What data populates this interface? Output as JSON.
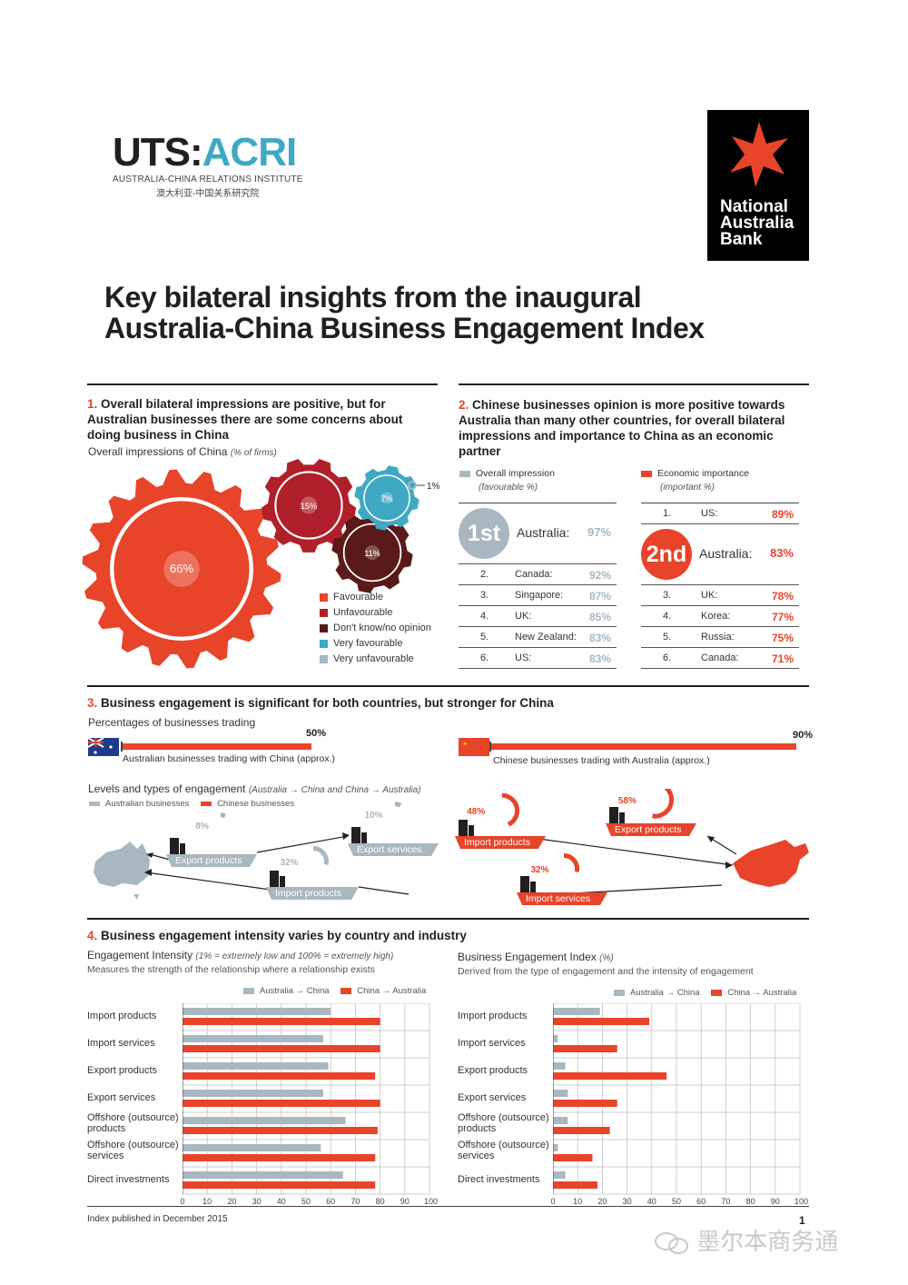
{
  "header": {
    "logo_left_main_a": "UTS:",
    "logo_left_main_b": "ACRI",
    "logo_left_sub": "AUSTRALIA-CHINA RELATIONS INSTITUTE",
    "logo_left_cn": "澳大利亚-中国关系研究院",
    "logo_right_line1": "National",
    "logo_right_line2": "Australia",
    "logo_right_line3": "Bank",
    "title_line1": "Key bilateral insights from the inaugural",
    "title_line2": "Australia-China Business Engagement Index"
  },
  "section1": {
    "num": "1.",
    "heading": "Overall bilateral impressions are positive, but for Australian businesses there are some concerns about doing business in China",
    "subtitle": "Overall impressions of China",
    "subtitle_note": "(% of firms)",
    "chart_data": {
      "type": "pie",
      "title": "Overall impressions of China",
      "labels": [
        "Favourable",
        "Unfavourable",
        "Don't know/no opinion",
        "Very favourable",
        "Very unfavourable"
      ],
      "values": [
        66,
        15,
        11,
        7,
        1
      ],
      "colors": [
        "#e8442a",
        "#b0202a",
        "#5a1a1a",
        "#3fa9c4",
        "#a9b7c0"
      ],
      "value_labels": [
        "66%",
        "15%",
        "11%",
        "7%",
        "1%"
      ]
    }
  },
  "section2": {
    "num": "2.",
    "heading": "Chinese businesses opinion is more positive towards Australia than many other countries, for overall bilateral impressions and importance to China as an economic partner",
    "left_legend_line1": "Overall impression",
    "left_legend_line2": "(favourable %)",
    "right_legend_line1": "Economic importance",
    "right_legend_line2": "(important %)",
    "left_big_rank": "1st",
    "right_big_rank": "2nd",
    "chart_data": [
      {
        "type": "table",
        "title": "Overall impression (favourable %)",
        "rows": [
          {
            "rank": "1st",
            "country": "Australia:",
            "value": "97%"
          },
          {
            "rank": "2.",
            "country": "Canada:",
            "value": "92%"
          },
          {
            "rank": "3.",
            "country": "Singapore:",
            "value": "87%"
          },
          {
            "rank": "4.",
            "country": "UK:",
            "value": "85%"
          },
          {
            "rank": "5.",
            "country": "New Zealand:",
            "value": "83%"
          },
          {
            "rank": "6.",
            "country": "US:",
            "value": "83%"
          }
        ]
      },
      {
        "type": "table",
        "title": "Economic importance (important %)",
        "rows": [
          {
            "rank": "1.",
            "country": "US:",
            "value": "89%"
          },
          {
            "rank": "2nd",
            "country": "Australia:",
            "value": "83%"
          },
          {
            "rank": "3.",
            "country": "UK:",
            "value": "78%"
          },
          {
            "rank": "4.",
            "country": "Korea:",
            "value": "77%"
          },
          {
            "rank": "5.",
            "country": "Russia:",
            "value": "75%"
          },
          {
            "rank": "6.",
            "country": "Canada:",
            "value": "71%"
          }
        ]
      }
    ]
  },
  "section3": {
    "num": "3.",
    "heading": "Business engagement is significant for both countries, but stronger for China",
    "trading_title": "Percentages of businesses trading",
    "aus_bar_label": "Australian businesses trading with China (approx.)",
    "aus_value": "50%",
    "cn_bar_label": "Chinese businesses trading with Australia (approx.)",
    "cn_value": "90%",
    "levels_title": "Levels and types of engagement",
    "levels_note": "(Australia → China and China → Australia)",
    "legend_aus": "Australian businesses",
    "legend_cn": "Chinese businesses",
    "aus_ops": [
      {
        "label": "Export products",
        "value": "8%"
      },
      {
        "label": "Export services",
        "value": "10%"
      },
      {
        "label": "Import products",
        "value": "32%"
      }
    ],
    "cn_ops": [
      {
        "label": "Import products",
        "value": "48%"
      },
      {
        "label": "Export products",
        "value": "58%"
      },
      {
        "label": "Import services",
        "value": "32%"
      }
    ],
    "chart_data": {
      "type": "bar",
      "categories": [
        "Australian businesses trading with China (approx.)",
        "Chinese businesses trading with Australia (approx.)"
      ],
      "values": [
        50,
        90
      ]
    }
  },
  "section4": {
    "num": "4.",
    "heading": "Business engagement intensity varies by country and industry",
    "left_title": "Engagement Intensity",
    "left_note": "(1% = extremely low and 100% = extremely high)",
    "left_sub": "Measures the strength of the relationship where a relationship exists",
    "right_title": "Business Engagement Index",
    "right_note": "(%)",
    "right_sub": "Derived from the type of engagement and the intensity of engagement",
    "legend_a": "Australia → China",
    "legend_b": "China → Australia",
    "chart_data": [
      {
        "type": "bar",
        "title": "Engagement Intensity",
        "categories": [
          "Import products",
          "Import services",
          "Export products",
          "Export services",
          "Offshore (outsource) products",
          "Offshore (outsource) services",
          "Direct investments"
        ],
        "series": [
          {
            "name": "Australia → China",
            "values": [
              60,
              57,
              59,
              57,
              66,
              56,
              65
            ],
            "color": "#a9b7c0"
          },
          {
            "name": "China → Australia",
            "values": [
              80,
              80,
              78,
              80,
              79,
              78,
              78
            ],
            "color": "#e8442a"
          }
        ],
        "xlim": [
          0,
          100
        ],
        "ticks": [
          "0",
          "10",
          "20",
          "30",
          "40",
          "50",
          "60",
          "70",
          "80",
          "90",
          "100"
        ]
      },
      {
        "type": "bar",
        "title": "Business Engagement Index",
        "categories": [
          "Import products",
          "Import services",
          "Export products",
          "Export services",
          "Offshore (outsource) products",
          "Offshore (outsource) services",
          "Direct investments"
        ],
        "series": [
          {
            "name": "Australia → China",
            "values": [
              19,
              2,
              5,
              6,
              6,
              2,
              5
            ],
            "color": "#a9b7c0"
          },
          {
            "name": "China → Australia",
            "values": [
              39,
              26,
              46,
              26,
              23,
              16,
              18
            ],
            "color": "#e8442a"
          }
        ],
        "xlim": [
          0,
          100
        ],
        "ticks": [
          "0",
          "10",
          "20",
          "30",
          "40",
          "50",
          "60",
          "70",
          "80",
          "90",
          "100"
        ]
      }
    ]
  },
  "footer": {
    "note": "Index published in December 2015",
    "page": "1",
    "watermark": "墨尔本商务通"
  }
}
